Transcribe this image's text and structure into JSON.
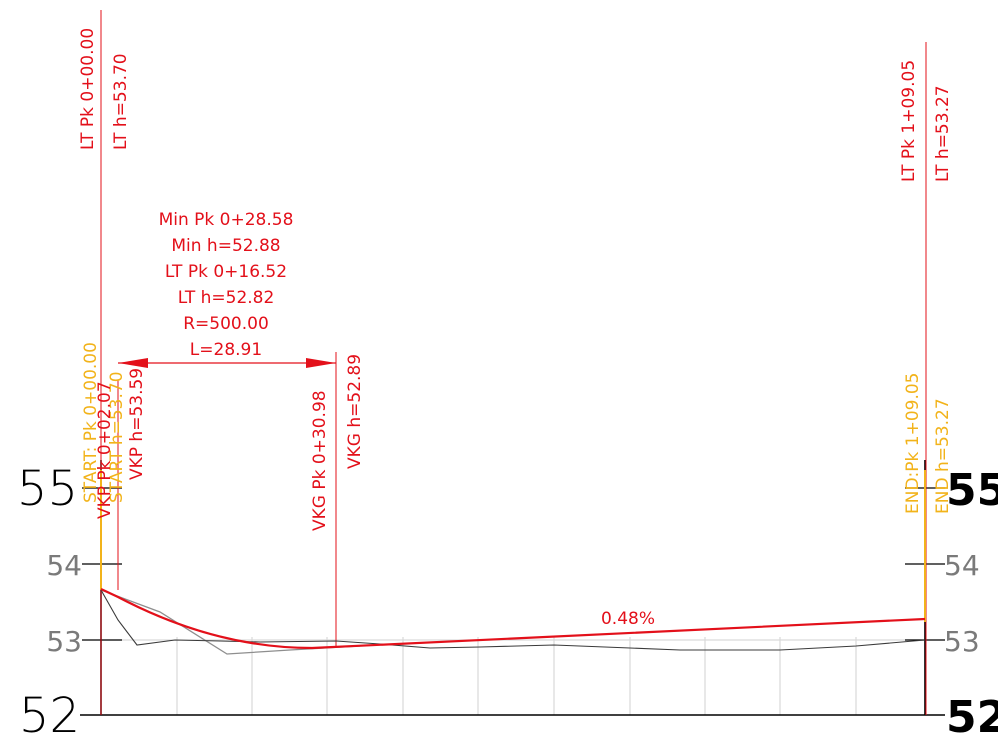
{
  "colors": {
    "design": "#e3101a",
    "key": "#f2b31a",
    "ground": "#3a3a3a",
    "ground_alt": "#8e8e8e",
    "grid": "#d9d9d9",
    "frame": "#000000",
    "left_small_labels": "#7a7a7a",
    "right_small_labels": "#7a7a7a"
  },
  "vertical_labels": {
    "lt_start_pk": "LT Pk 0+00.00",
    "lt_start_h": "LT h=53.70",
    "lt_end_pk": "LT Pk 1+09.05",
    "lt_end_h": "LT h=53.27",
    "start_pk": "START: Pk 0+00.00",
    "start_h": "START h=53.70",
    "vkp_pk": "VKP Pk 0+02.07",
    "vkp_h": "VKP h=53.59",
    "vkg_pk": "VKG Pk 0+30.98",
    "vkg_h": "VKG h=52.89",
    "end_pk": "END:Pk 1+09.05",
    "end_h": "END h=53.27"
  },
  "curve_annotation": {
    "min_pk": "Min Pk 0+28.58",
    "min_h": "Min h=52.88",
    "lt_pk": "LT Pk 0+16.52",
    "lt_h": "LT h=52.82",
    "radius": "R=500.00",
    "length": "L=28.91"
  },
  "grade_label": "0.48%",
  "axis": {
    "left": [
      "55",
      "54",
      "53",
      "52"
    ],
    "right": [
      "55",
      "54",
      "53",
      "52"
    ]
  },
  "profile_data": {
    "design_line": {
      "start_station": 0.0,
      "end_station": 109.05,
      "start_elevation": 53.7,
      "end_elevation": 53.27,
      "vkp_station": 2.07,
      "vkp_elevation": 53.59,
      "vkg_station": 30.98,
      "vkg_elevation": 52.89,
      "min_station": 28.58,
      "min_elevation": 52.88,
      "radius": 500.0,
      "length": 28.91,
      "grade_percent": 0.48
    },
    "elevation_range": [
      52,
      55
    ]
  }
}
